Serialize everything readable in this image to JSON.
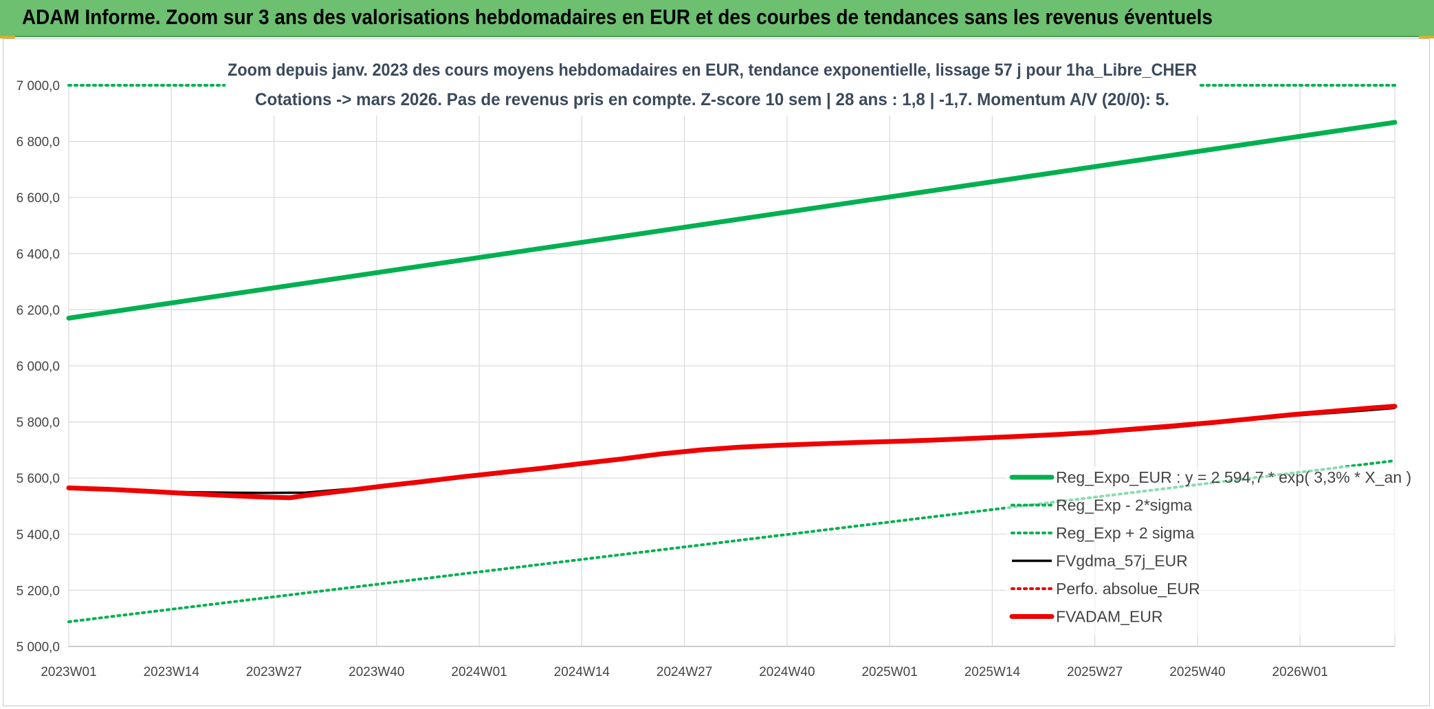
{
  "header": {
    "title": "ADAM Informe. Zoom sur 3 ans des valorisations hebdomadaires en EUR et des courbes de tendances sans les revenus éventuels"
  },
  "colors": {
    "banner": "#6cc070",
    "trend": "#00b050",
    "black_series": "#000000",
    "red_series": "#ee0000",
    "grid": "#d9d9d9"
  },
  "chart_data": {
    "type": "line",
    "title_lines": [
      "Zoom depuis janv. 2023 des cours moyens hebdomadaires en EUR, tendance exponentielle, lissage 57 j pour 1ha_Libre_CHER",
      "Cotations -> mars 2026. Pas de revenus pris en compte. Z-score 10 sem | 28 ans : 1,8 | -1,7. Momentum A/V (20/0): 5."
    ],
    "x_categories": [
      "2023W01",
      "2023W14",
      "2023W27",
      "2023W40",
      "2024W01",
      "2024W14",
      "2024W27",
      "2024W40",
      "2025W01",
      "2025W14",
      "2025W27",
      "2025W40",
      "2026W01"
    ],
    "x_range_weeks": [
      0,
      168
    ],
    "ylim": [
      5000,
      7000
    ],
    "y_ticks": [
      5000,
      5200,
      5400,
      5600,
      5800,
      6000,
      6200,
      6400,
      6600,
      6800,
      7000
    ],
    "y_tick_labels": [
      "5 000,0",
      "5 200,0",
      "5 400,0",
      "5 600,0",
      "5 800,0",
      "6 000,0",
      "6 200,0",
      "6 400,0",
      "6 600,0",
      "6 800,0",
      "7 000,0"
    ],
    "grid": true,
    "legend_position": "right",
    "series": [
      {
        "name": "Reg_Expo_EUR : y = 2 594,7 * exp( 3,3% *  X_an )",
        "style": "solid-thick",
        "color": "#00b050",
        "x": [
          0,
          168
        ],
        "y": [
          6170,
          6868
        ]
      },
      {
        "name": "Reg_Exp - 2*sigma",
        "style": "dotted",
        "color": "#00b050",
        "x": [
          0,
          168
        ],
        "y": [
          5088,
          5662
        ]
      },
      {
        "name": "Reg_Exp + 2 sigma",
        "style": "dotted",
        "color": "#00b050",
        "x": [
          0,
          168
        ],
        "y": [
          7000,
          7000
        ]
      },
      {
        "name": "FVgdma_57j_EUR",
        "style": "solid",
        "color": "#000000",
        "x": [
          0,
          5,
          10,
          15,
          20,
          25,
          30,
          35,
          40,
          45,
          50,
          55,
          60,
          65,
          70,
          75,
          80,
          85,
          90,
          95,
          100,
          105,
          110,
          115,
          120,
          125,
          130,
          135,
          140,
          145,
          150,
          155,
          160,
          165,
          168
        ],
        "y": [
          5565,
          5560,
          5555,
          5550,
          5548,
          5547,
          5548,
          5560,
          5572,
          5585,
          5602,
          5618,
          5632,
          5650,
          5666,
          5683,
          5698,
          5708,
          5715,
          5720,
          5725,
          5729,
          5735,
          5741,
          5747,
          5753,
          5760,
          5770,
          5781,
          5795,
          5808,
          5822,
          5832,
          5843,
          5850
        ]
      },
      {
        "name": "Perfo. absolue_EUR",
        "style": "dotted",
        "color": "#ee0000",
        "x": [],
        "y": []
      },
      {
        "name": "FVADAM_EUR",
        "style": "solid-thick",
        "color": "#ee0000",
        "x": [
          0,
          5,
          10,
          15,
          20,
          25,
          28,
          30,
          35,
          40,
          45,
          50,
          55,
          60,
          65,
          70,
          75,
          80,
          85,
          90,
          95,
          100,
          105,
          110,
          115,
          120,
          125,
          130,
          135,
          140,
          145,
          150,
          155,
          160,
          165,
          168
        ],
        "y": [
          5565,
          5560,
          5553,
          5545,
          5538,
          5532,
          5530,
          5538,
          5555,
          5572,
          5588,
          5605,
          5620,
          5635,
          5652,
          5668,
          5686,
          5700,
          5710,
          5717,
          5722,
          5727,
          5731,
          5736,
          5742,
          5748,
          5755,
          5763,
          5775,
          5786,
          5798,
          5812,
          5826,
          5838,
          5850,
          5856
        ]
      }
    ]
  }
}
